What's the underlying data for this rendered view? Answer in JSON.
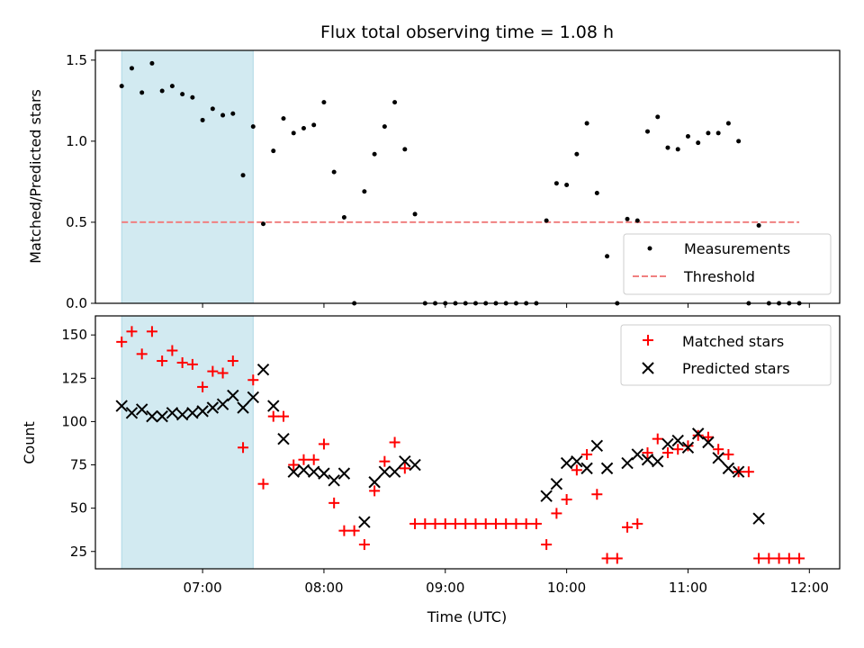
{
  "chart_data": [
    {
      "type": "scatter",
      "title": "Flux total observing time = 1.08 h",
      "ylabel": "Matched/Predicted stars",
      "xlim": [
        "06:07",
        "12:15"
      ],
      "ylim": [
        0,
        1.56
      ],
      "xticks": [
        "07:00",
        "08:00",
        "09:00",
        "10:00",
        "11:00",
        "12:00"
      ],
      "yticks": [
        0,
        0.5,
        1.0,
        1.5
      ],
      "ytick_labels": [
        "0.0",
        "0.5",
        "1.0",
        "1.5"
      ],
      "highlight_span": [
        "06:20",
        "07:25"
      ],
      "highlight_color": "#add8e6",
      "legend_position": "lower-right",
      "series": [
        {
          "name": "Measurements",
          "marker": "dot",
          "color": "#000000",
          "x": [
            "06:20",
            "06:25",
            "06:30",
            "06:35",
            "06:40",
            "06:45",
            "06:50",
            "06:55",
            "07:00",
            "07:05",
            "07:10",
            "07:15",
            "07:20",
            "07:25",
            "07:30",
            "07:35",
            "07:40",
            "07:45",
            "07:50",
            "07:55",
            "08:00",
            "08:05",
            "08:10",
            "08:15",
            "08:20",
            "08:25",
            "08:30",
            "08:35",
            "08:40",
            "08:45",
            "08:50",
            "08:55",
            "09:00",
            "09:05",
            "09:10",
            "09:15",
            "09:20",
            "09:25",
            "09:30",
            "09:35",
            "09:40",
            "09:45",
            "09:50",
            "09:55",
            "10:00",
            "10:05",
            "10:10",
            "10:15",
            "10:20",
            "10:25",
            "10:30",
            "10:35",
            "10:40",
            "10:45",
            "10:50",
            "10:55",
            "11:00",
            "11:05",
            "11:10",
            "11:15",
            "11:20",
            "11:25",
            "11:30",
            "11:35",
            "11:40",
            "11:45",
            "11:50",
            "11:55"
          ],
          "y": [
            1.34,
            1.45,
            1.3,
            1.48,
            1.31,
            1.34,
            1.29,
            1.27,
            1.13,
            1.2,
            1.16,
            1.17,
            0.79,
            1.09,
            0.49,
            0.94,
            1.14,
            1.05,
            1.08,
            1.1,
            1.24,
            0.81,
            0.53,
            0.0,
            0.69,
            0.92,
            1.09,
            1.24,
            0.95,
            0.55,
            0.0,
            0.0,
            0.0,
            0.0,
            0.0,
            0.0,
            0.0,
            0.0,
            0.0,
            0.0,
            0.0,
            0.0,
            0.51,
            0.74,
            0.73,
            0.92,
            1.11,
            0.68,
            0.29,
            0.0,
            0.52,
            0.51,
            1.06,
            1.15,
            0.96,
            0.95,
            1.03,
            0.99,
            1.05,
            1.05,
            1.11,
            1.0,
            0.0,
            0.48,
            0.0,
            0.0,
            0.0,
            0.0
          ]
        },
        {
          "name": "Threshold",
          "marker": "dashed-line",
          "color": "#f08080",
          "x": [
            "06:20",
            "11:55"
          ],
          "y": [
            0.5,
            0.5
          ]
        }
      ]
    },
    {
      "type": "scatter",
      "xlabel": "Time (UTC)",
      "ylabel": "Count",
      "xlim": [
        "06:07",
        "12:15"
      ],
      "ylim": [
        15,
        161
      ],
      "xticks": [
        "07:00",
        "08:00",
        "09:00",
        "10:00",
        "11:00",
        "12:00"
      ],
      "yticks": [
        25,
        50,
        75,
        100,
        125,
        150
      ],
      "highlight_span": [
        "06:20",
        "07:25"
      ],
      "highlight_color": "#add8e6",
      "legend_position": "upper-right",
      "series": [
        {
          "name": "Matched stars",
          "marker": "plus",
          "color": "#ff0000",
          "x": [
            "06:20",
            "06:25",
            "06:30",
            "06:35",
            "06:40",
            "06:45",
            "06:50",
            "06:55",
            "07:00",
            "07:05",
            "07:10",
            "07:15",
            "07:20",
            "07:25",
            "07:30",
            "07:35",
            "07:40",
            "07:45",
            "07:50",
            "07:55",
            "08:00",
            "08:05",
            "08:10",
            "08:15",
            "08:20",
            "08:25",
            "08:30",
            "08:35",
            "08:40",
            "08:45",
            "08:50",
            "08:55",
            "09:00",
            "09:05",
            "09:10",
            "09:15",
            "09:20",
            "09:25",
            "09:30",
            "09:35",
            "09:40",
            "09:45",
            "09:50",
            "09:55",
            "10:00",
            "10:05",
            "10:10",
            "10:15",
            "10:20",
            "10:25",
            "10:30",
            "10:35",
            "10:40",
            "10:45",
            "10:50",
            "10:55",
            "11:00",
            "11:05",
            "11:10",
            "11:15",
            "11:20",
            "11:25",
            "11:30",
            "11:35",
            "11:40",
            "11:45",
            "11:50",
            "11:55"
          ],
          "y": [
            146,
            152,
            139,
            152,
            135,
            141,
            134,
            133,
            120,
            129,
            128,
            135,
            85,
            124,
            64,
            103,
            103,
            75,
            78,
            78,
            87,
            53,
            37,
            37,
            29,
            60,
            77,
            88,
            73,
            41,
            41,
            41,
            41,
            41,
            41,
            41,
            41,
            41,
            41,
            41,
            41,
            41,
            29,
            47,
            55,
            72,
            81,
            58,
            21,
            21,
            39,
            41,
            82,
            90,
            82,
            84,
            86,
            92,
            91,
            84,
            81,
            71,
            71,
            21,
            21,
            21,
            21,
            21
          ]
        },
        {
          "name": "Predicted stars",
          "marker": "x",
          "color": "#000000",
          "x": [
            "06:20",
            "06:25",
            "06:30",
            "06:35",
            "06:40",
            "06:45",
            "06:50",
            "06:55",
            "07:00",
            "07:05",
            "07:10",
            "07:15",
            "07:20",
            "07:25",
            "07:30",
            "07:35",
            "07:40",
            "07:45",
            "07:50",
            "07:55",
            "08:00",
            "08:05",
            "08:10",
            "08:20",
            "08:25",
            "08:30",
            "08:35",
            "08:40",
            "08:45",
            "09:50",
            "09:55",
            "10:00",
            "10:05",
            "10:10",
            "10:15",
            "10:20",
            "10:30",
            "10:35",
            "10:40",
            "10:45",
            "10:50",
            "10:55",
            "11:00",
            "11:05",
            "11:10",
            "11:15",
            "11:20",
            "11:25",
            "11:35"
          ],
          "y": [
            109,
            105,
            107,
            103,
            103,
            105,
            104,
            105,
            106,
            108,
            110,
            115,
            108,
            114,
            130,
            109,
            90,
            71,
            72,
            71,
            70,
            66,
            70,
            42,
            65,
            71,
            71,
            77,
            75,
            57,
            64,
            76,
            77,
            73,
            86,
            73,
            76,
            81,
            78,
            77,
            87,
            89,
            85,
            93,
            88,
            79,
            73,
            71,
            44
          ]
        }
      ]
    }
  ]
}
